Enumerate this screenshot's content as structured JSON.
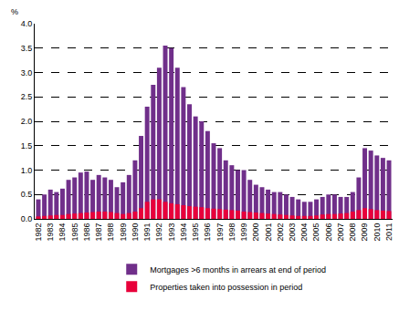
{
  "chart_data": {
    "type": "bar",
    "ylabel": "%",
    "categories": [
      "1982",
      null,
      "1983",
      null,
      "1984",
      null,
      "1985",
      null,
      "1986",
      null,
      "1987",
      null,
      "1988",
      null,
      "1989",
      null,
      "1990",
      null,
      "1991",
      null,
      "1992",
      null,
      "1993",
      null,
      "1994",
      null,
      "1995",
      null,
      "1996",
      null,
      "1997",
      null,
      "1998",
      null,
      "1999",
      null,
      "2000",
      null,
      "2001",
      null,
      "2002",
      null,
      "2003",
      null,
      "2004",
      null,
      "2005",
      null,
      "2006",
      null,
      "2007",
      null,
      "2008",
      null,
      "2009",
      null,
      "2010",
      null,
      "2011"
    ],
    "series": [
      {
        "name": "Mortgages >6 months in arrears at end of period",
        "color": "#702f8a",
        "values": [
          0.4,
          0.5,
          0.6,
          0.55,
          0.62,
          0.8,
          0.85,
          0.95,
          0.97,
          0.8,
          0.9,
          0.85,
          0.8,
          0.65,
          0.75,
          0.9,
          1.2,
          1.7,
          2.3,
          2.75,
          3.1,
          3.55,
          3.5,
          3.1,
          2.7,
          2.35,
          2.1,
          2.0,
          1.8,
          1.55,
          1.45,
          1.2,
          1.1,
          1.0,
          1.0,
          0.8,
          0.7,
          0.65,
          0.6,
          0.55,
          0.55,
          0.5,
          0.45,
          0.4,
          0.35,
          0.35,
          0.4,
          0.45,
          0.5,
          0.5,
          0.45,
          0.45,
          0.55,
          0.85,
          1.45,
          1.4,
          1.3,
          1.25,
          1.2
        ]
      },
      {
        "name": "Properties taken into possession in period",
        "color": "#e8003a",
        "values": [
          0.05,
          0.06,
          0.07,
          0.08,
          0.08,
          0.1,
          0.11,
          0.12,
          0.13,
          0.14,
          0.15,
          0.15,
          0.14,
          0.12,
          0.1,
          0.12,
          0.15,
          0.22,
          0.35,
          0.4,
          0.4,
          0.35,
          0.32,
          0.3,
          0.28,
          0.26,
          0.25,
          0.24,
          0.22,
          0.21,
          0.2,
          0.19,
          0.18,
          0.17,
          0.15,
          0.14,
          0.13,
          0.12,
          0.11,
          0.1,
          0.09,
          0.08,
          0.07,
          0.06,
          0.06,
          0.06,
          0.07,
          0.09,
          0.1,
          0.1,
          0.11,
          0.12,
          0.15,
          0.18,
          0.22,
          0.2,
          0.18,
          0.17,
          0.16
        ]
      }
    ],
    "stacked": false,
    "ylim": [
      0,
      4
    ],
    "yticks": [
      {
        "value": 0,
        "label": "0.0"
      },
      0.5,
      {
        "value": 1,
        "label": "1.0"
      },
      1.5,
      {
        "value": 2,
        "label": "2.0"
      },
      2.5,
      {
        "value": 3,
        "label": "3.0"
      },
      3.5,
      {
        "value": 4,
        "label": "4.0"
      }
    ],
    "grid": true,
    "legend": "bottom"
  }
}
